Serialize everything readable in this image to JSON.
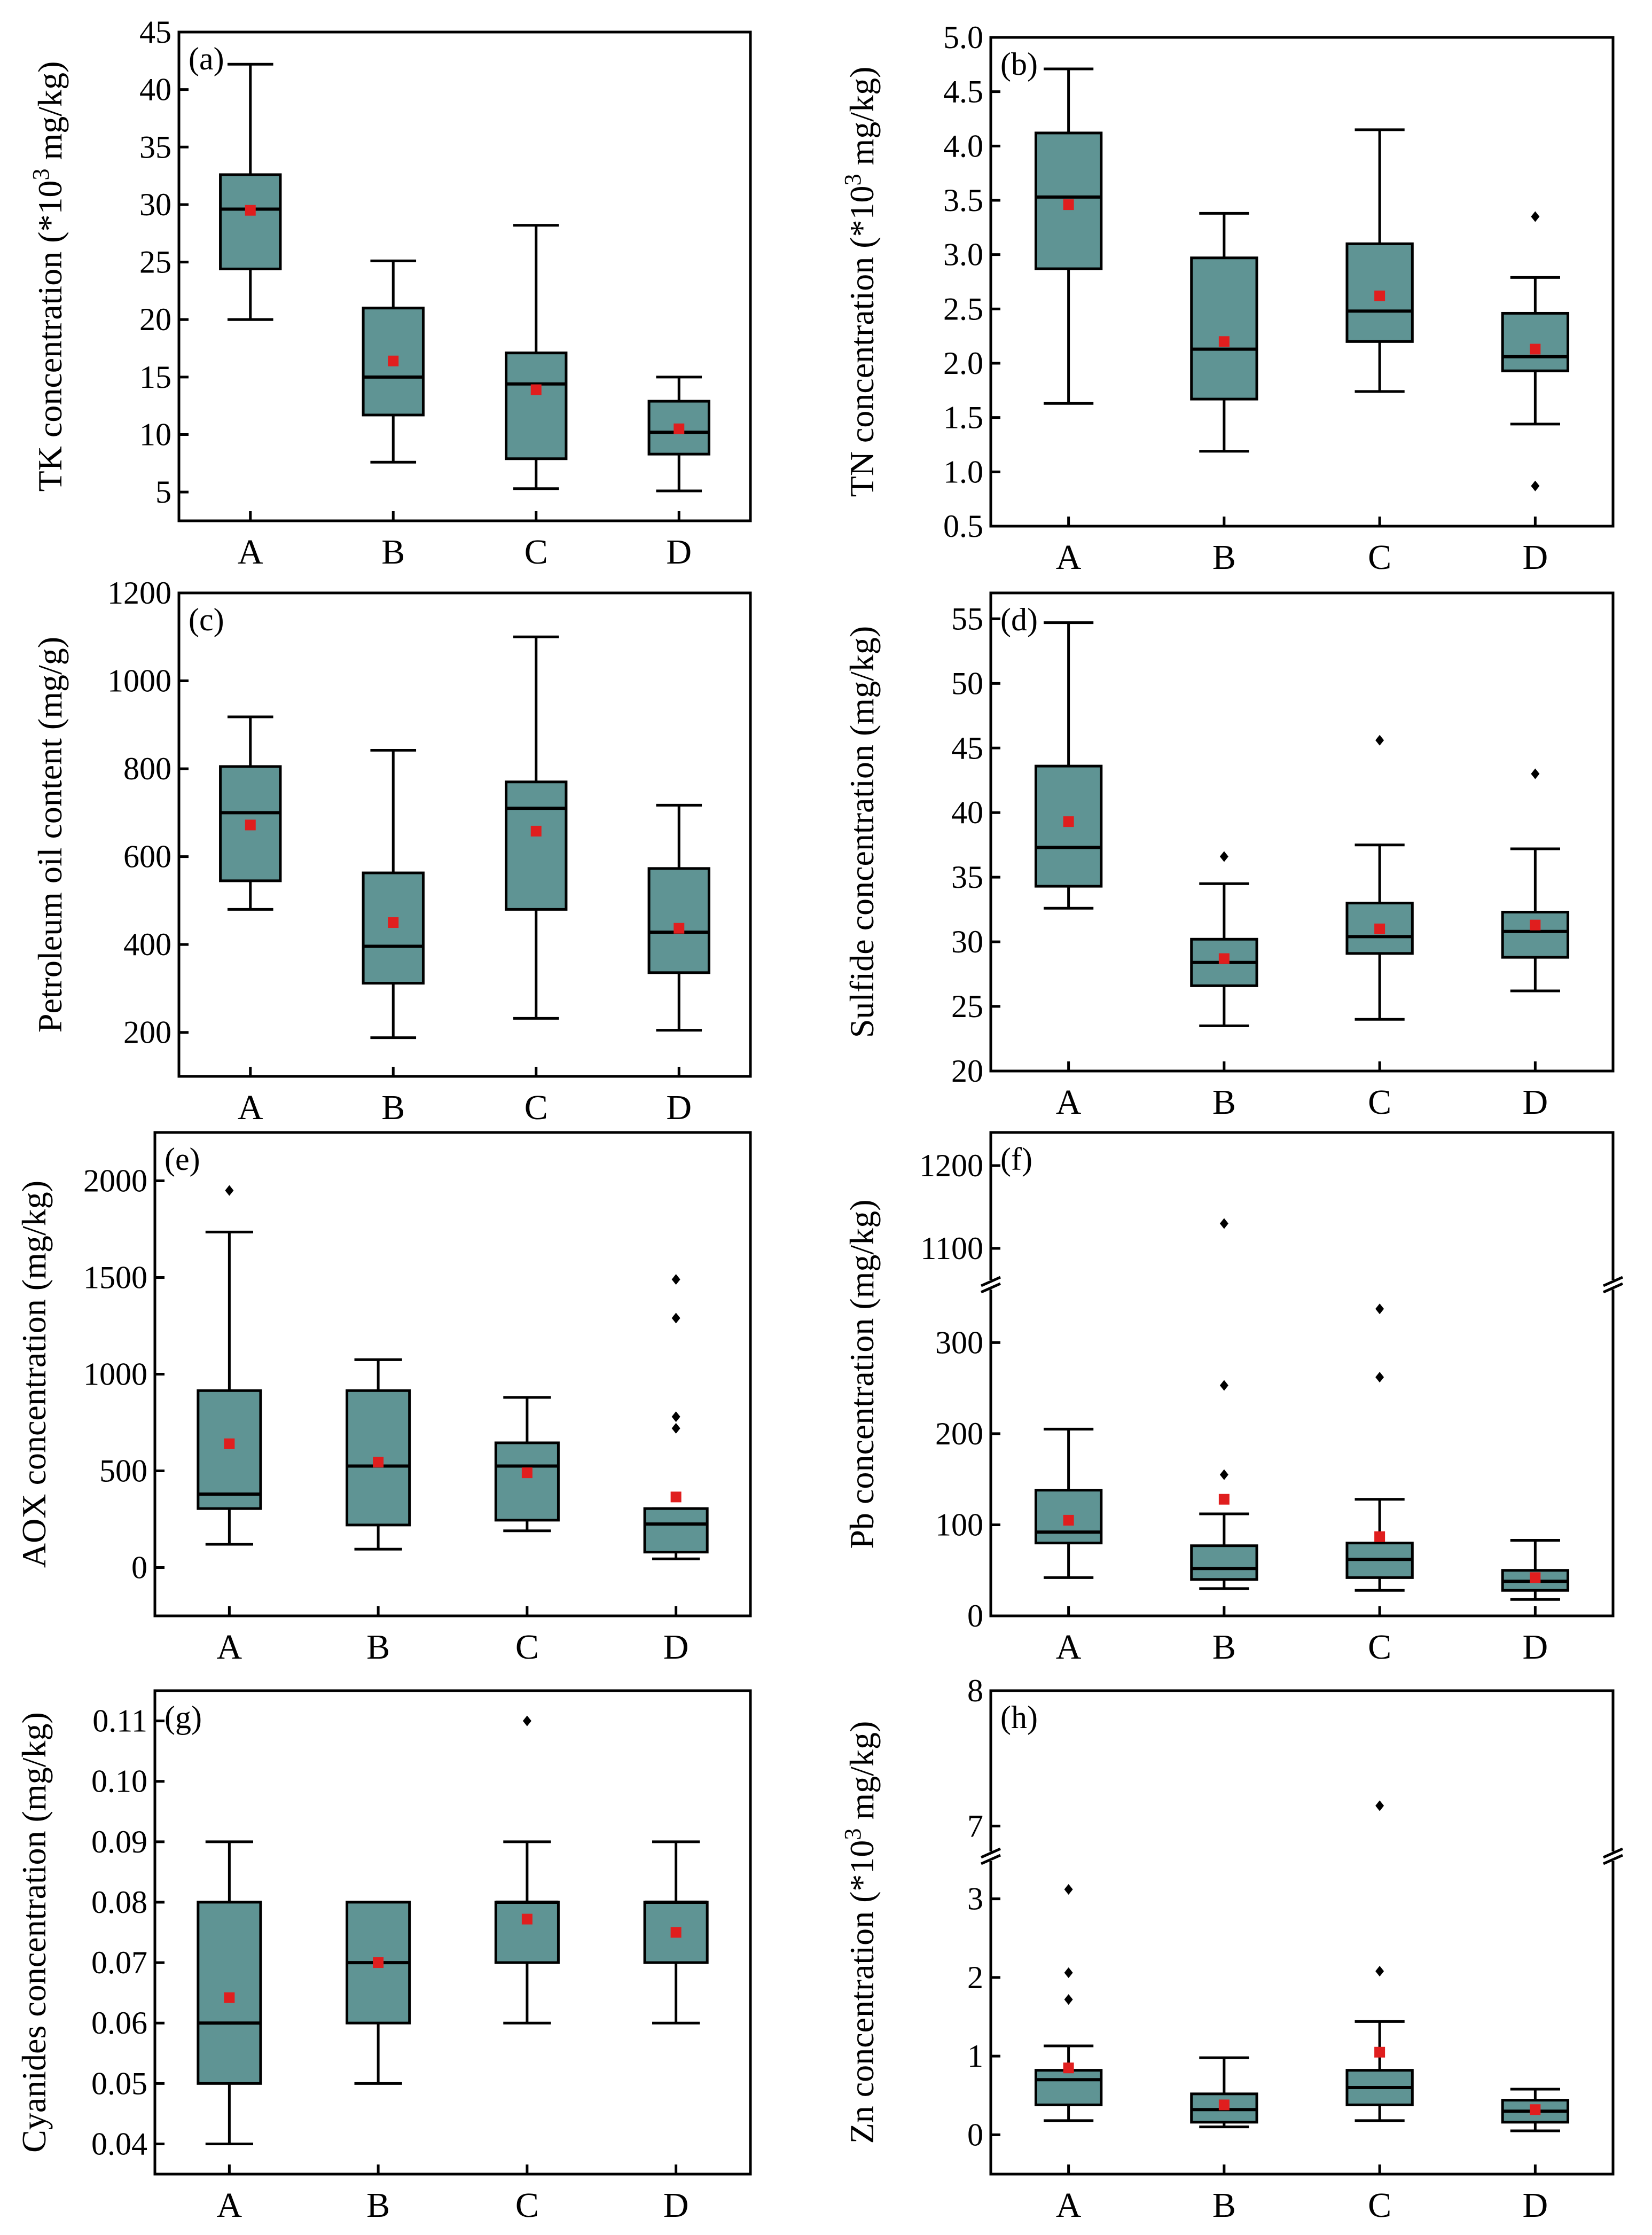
{
  "colors": {
    "box_fill": "#5F9494",
    "box_stroke": "#000000",
    "mean_marker": "#E01E1E",
    "outlier": "#000000",
    "frame": "#000000"
  },
  "chart_data": [
    {
      "type": "box",
      "panel_label": "(a)",
      "ylabel": "TK concentration (*10³ mg/kg)",
      "ylabel_parts": {
        "main": "TK concentration (*10",
        "sup": "3",
        "tail": " mg/kg)"
      },
      "ylim": [
        2.5,
        45
      ],
      "yticks": [
        5,
        10,
        15,
        20,
        25,
        30,
        35,
        40,
        45
      ],
      "yticklabels": [
        "5",
        "10",
        "15",
        "20",
        "25",
        "30",
        "35",
        "40",
        "45"
      ],
      "categories": [
        "A",
        "B",
        "C",
        "D"
      ],
      "boxes": [
        {
          "whisker_low": 20.0,
          "q1": 24.4,
          "median": 29.6,
          "q3": 32.6,
          "whisker_high": 42.2,
          "mean": 29.5,
          "outliers": []
        },
        {
          "whisker_low": 7.6,
          "q1": 11.7,
          "median": 15.0,
          "q3": 21.0,
          "whisker_high": 25.1,
          "mean": 16.4,
          "outliers": []
        },
        {
          "whisker_low": 5.3,
          "q1": 7.9,
          "median": 14.4,
          "q3": 17.1,
          "whisker_high": 28.2,
          "mean": 13.9,
          "outliers": []
        },
        {
          "whisker_low": 5.1,
          "q1": 8.3,
          "median": 10.2,
          "q3": 12.9,
          "whisker_high": 15.0,
          "mean": 10.5,
          "outliers": []
        }
      ]
    },
    {
      "type": "box",
      "panel_label": "(b)",
      "ylabel": "TN concentration (*10³ mg/kg)",
      "ylabel_parts": {
        "main": "TN concentration (*10",
        "sup": "3",
        "tail": " mg/kg)"
      },
      "ylim": [
        0.5,
        5.0
      ],
      "yticks": [
        0.5,
        1.0,
        1.5,
        2.0,
        2.5,
        3.0,
        3.5,
        4.0,
        4.5,
        5.0
      ],
      "yticklabels": [
        "0.5",
        "1.0",
        "1.5",
        "2.0",
        "2.5",
        "3.0",
        "3.5",
        "4.0",
        "4.5",
        "5.0"
      ],
      "categories": [
        "A",
        "B",
        "C",
        "D"
      ],
      "boxes": [
        {
          "whisker_low": 1.63,
          "q1": 2.87,
          "median": 3.53,
          "q3": 4.12,
          "whisker_high": 4.71,
          "mean": 3.46,
          "outliers": []
        },
        {
          "whisker_low": 1.19,
          "q1": 1.67,
          "median": 2.13,
          "q3": 2.97,
          "whisker_high": 3.38,
          "mean": 2.2,
          "outliers": []
        },
        {
          "whisker_low": 1.74,
          "q1": 2.2,
          "median": 2.48,
          "q3": 3.1,
          "whisker_high": 4.15,
          "mean": 2.62,
          "outliers": []
        },
        {
          "whisker_low": 1.44,
          "q1": 1.93,
          "median": 2.06,
          "q3": 2.46,
          "whisker_high": 2.79,
          "mean": 2.13,
          "outliers": [
            0.87,
            3.35
          ]
        }
      ]
    },
    {
      "type": "box",
      "panel_label": "(c)",
      "ylabel": "Petroleum oil content (mg/g)",
      "ylim": [
        100,
        1200
      ],
      "yticks": [
        200,
        400,
        600,
        800,
        1000,
        1200
      ],
      "yticklabels": [
        "200",
        "400",
        "600",
        "800",
        "1000",
        "1200"
      ],
      "categories": [
        "A",
        "B",
        "C",
        "D"
      ],
      "boxes": [
        {
          "whisker_low": 480,
          "q1": 545,
          "median": 700,
          "q3": 805,
          "whisker_high": 918,
          "mean": 672,
          "outliers": []
        },
        {
          "whisker_low": 188,
          "q1": 312,
          "median": 396,
          "q3": 563,
          "whisker_high": 842,
          "mean": 450,
          "outliers": []
        },
        {
          "whisker_low": 232,
          "q1": 480,
          "median": 710,
          "q3": 770,
          "whisker_high": 1100,
          "mean": 658,
          "outliers": []
        },
        {
          "whisker_low": 205,
          "q1": 336,
          "median": 428,
          "q3": 573,
          "whisker_high": 717,
          "mean": 437,
          "outliers": []
        }
      ]
    },
    {
      "type": "box",
      "panel_label": "(d)",
      "ylabel": "Sulfide concentration (mg/kg)",
      "ylim": [
        20,
        57
      ],
      "yticks": [
        20,
        25,
        30,
        35,
        40,
        45,
        50,
        55
      ],
      "yticklabels": [
        "20",
        "25",
        "30",
        "35",
        "40",
        "45",
        "50",
        "55"
      ],
      "categories": [
        "A",
        "B",
        "C",
        "D"
      ],
      "boxes": [
        {
          "whisker_low": 32.6,
          "q1": 34.3,
          "median": 37.3,
          "q3": 43.6,
          "whisker_high": 54.7,
          "mean": 39.3,
          "outliers": []
        },
        {
          "whisker_low": 23.5,
          "q1": 26.6,
          "median": 28.4,
          "q3": 30.2,
          "whisker_high": 34.5,
          "mean": 28.7,
          "outliers": [
            36.6
          ]
        },
        {
          "whisker_low": 24.0,
          "q1": 29.1,
          "median": 30.4,
          "q3": 33.0,
          "whisker_high": 37.5,
          "mean": 31.0,
          "outliers": [
            45.6
          ]
        },
        {
          "whisker_low": 26.2,
          "q1": 28.8,
          "median": 30.8,
          "q3": 32.3,
          "whisker_high": 37.2,
          "mean": 31.3,
          "outliers": [
            43.0
          ]
        }
      ]
    },
    {
      "type": "box",
      "panel_label": "(e)",
      "ylabel": "AOX concentration (mg/kg)",
      "ylim": [
        -250,
        2250
      ],
      "yticks": [
        0,
        500,
        1000,
        1500,
        2000
      ],
      "yticklabels": [
        "0",
        "500",
        "1000",
        "1500",
        "2000"
      ],
      "categories": [
        "A",
        "B",
        "C",
        "D"
      ],
      "boxes": [
        {
          "whisker_low": 120,
          "q1": 305,
          "median": 380,
          "q3": 915,
          "whisker_high": 1735,
          "mean": 640,
          "outliers": [
            1950
          ]
        },
        {
          "whisker_low": 95,
          "q1": 220,
          "median": 525,
          "q3": 915,
          "whisker_high": 1075,
          "mean": 545,
          "outliers": []
        },
        {
          "whisker_low": 190,
          "q1": 245,
          "median": 525,
          "q3": 645,
          "whisker_high": 880,
          "mean": 490,
          "outliers": []
        },
        {
          "whisker_low": 45,
          "q1": 80,
          "median": 225,
          "q3": 305,
          "whisker_high": 305,
          "mean": 365,
          "outliers": [
            720,
            780,
            1290,
            1490
          ]
        }
      ]
    },
    {
      "type": "box",
      "panel_label": "(f)",
      "ylabel": "Pb concentration (mg/kg)",
      "broken_axis": true,
      "lower_ylim": [
        0,
        360
      ],
      "upper_ylim": [
        1060,
        1240
      ],
      "yticks": [
        0,
        100,
        200,
        300,
        1100,
        1200
      ],
      "yticklabels": [
        "0",
        "100",
        "200",
        "300",
        "1100",
        "1200"
      ],
      "categories": [
        "A",
        "B",
        "C",
        "D"
      ],
      "boxes": [
        {
          "whisker_low": 42,
          "q1": 80,
          "median": 92,
          "q3": 138,
          "whisker_high": 205,
          "mean": 105,
          "outliers": []
        },
        {
          "whisker_low": 30,
          "q1": 40,
          "median": 52,
          "q3": 77,
          "whisker_high": 112,
          "mean": 128,
          "outliers": [
            155,
            253,
            1130
          ]
        },
        {
          "whisker_low": 28,
          "q1": 42,
          "median": 62,
          "q3": 80,
          "whisker_high": 128,
          "mean": 87,
          "outliers": [
            262,
            337
          ]
        },
        {
          "whisker_low": 18,
          "q1": 28,
          "median": 38,
          "q3": 50,
          "whisker_high": 83,
          "mean": 42,
          "outliers": []
        }
      ]
    },
    {
      "type": "box",
      "panel_label": "(g)",
      "ylabel": "Cyanides concentration (mg/kg)",
      "ylim": [
        0.035,
        0.115
      ],
      "yticks": [
        0.04,
        0.05,
        0.06,
        0.07,
        0.08,
        0.09,
        0.1,
        0.11
      ],
      "yticklabels": [
        "0.04",
        "0.05",
        "0.06",
        "0.07",
        "0.08",
        "0.09",
        "0.10",
        "0.11"
      ],
      "categories": [
        "A",
        "B",
        "C",
        "D"
      ],
      "boxes": [
        {
          "whisker_low": 0.04,
          "q1": 0.05,
          "median": 0.06,
          "q3": 0.08,
          "whisker_high": 0.09,
          "mean": 0.0642,
          "outliers": []
        },
        {
          "whisker_low": 0.05,
          "q1": 0.06,
          "median": 0.07,
          "q3": 0.08,
          "whisker_high": 0.08,
          "mean": 0.07,
          "outliers": []
        },
        {
          "whisker_low": 0.06,
          "q1": 0.07,
          "median": 0.08,
          "q3": 0.08,
          "whisker_high": 0.09,
          "mean": 0.0772,
          "outliers": [
            0.11
          ]
        },
        {
          "whisker_low": 0.06,
          "q1": 0.07,
          "median": 0.08,
          "q3": 0.08,
          "whisker_high": 0.09,
          "mean": 0.075,
          "outliers": []
        }
      ]
    },
    {
      "type": "box",
      "panel_label": "(h)",
      "ylabel": "Zn concentration (*10³ mg/kg)",
      "ylabel_parts": {
        "main": "Zn concentration (*10",
        "sup": "3",
        "tail": " mg/kg)"
      },
      "broken_axis": true,
      "lower_ylim": [
        -0.5,
        3.5
      ],
      "upper_ylim": [
        6.8,
        8.0
      ],
      "yticks": [
        0,
        1,
        2,
        3,
        7,
        8
      ],
      "yticklabels": [
        "0",
        "1",
        "2",
        "3",
        "7",
        "8"
      ],
      "categories": [
        "A",
        "B",
        "C",
        "D"
      ],
      "boxes": [
        {
          "whisker_low": 0.18,
          "q1": 0.38,
          "median": 0.7,
          "q3": 0.82,
          "whisker_high": 1.13,
          "mean": 0.85,
          "outliers": [
            1.72,
            2.06,
            3.12
          ]
        },
        {
          "whisker_low": 0.1,
          "q1": 0.16,
          "median": 0.32,
          "q3": 0.52,
          "whisker_high": 0.98,
          "mean": 0.38,
          "outliers": []
        },
        {
          "whisker_low": 0.18,
          "q1": 0.38,
          "median": 0.6,
          "q3": 0.82,
          "whisker_high": 1.44,
          "mean": 1.05,
          "outliers": [
            2.08,
            7.15
          ]
        },
        {
          "whisker_low": 0.05,
          "q1": 0.16,
          "median": 0.3,
          "q3": 0.44,
          "whisker_high": 0.58,
          "mean": 0.32,
          "outliers": []
        }
      ]
    }
  ]
}
